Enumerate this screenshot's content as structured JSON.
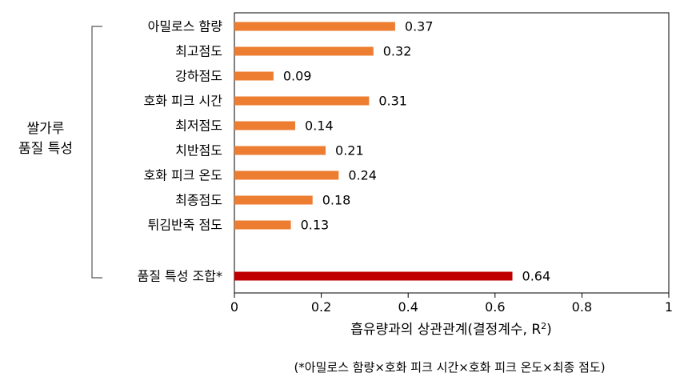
{
  "chart_data": {
    "type": "bar",
    "orientation": "horizontal",
    "categories": [
      "아밀로스 함량",
      "최고점도",
      "강하점도",
      "호화 피크 시간",
      "최저점도",
      "치반점도",
      "호화 피크 온도",
      "최종점도",
      "튀김반죽 점도",
      "품질 특성 조합*"
    ],
    "values": [
      0.37,
      0.32,
      0.09,
      0.31,
      0.14,
      0.21,
      0.24,
      0.18,
      0.13,
      0.64
    ],
    "value_labels": [
      "0.37",
      "0.32",
      "0.09",
      "0.31",
      "0.14",
      "0.21",
      "0.24",
      "0.18",
      "0.13",
      "0.64"
    ],
    "colors": [
      "#ED7D31",
      "#ED7D31",
      "#ED7D31",
      "#ED7D31",
      "#ED7D31",
      "#ED7D31",
      "#ED7D31",
      "#ED7D31",
      "#ED7D31",
      "#C00000"
    ],
    "xlim": [
      0,
      1
    ],
    "xticks": [
      "0",
      "0.2",
      "0.4",
      "0.6",
      "0.8",
      "1"
    ],
    "xlabel_pre": "흡유량과의 상관관계(결정계수, R",
    "xlabel_sup": "2",
    "xlabel_post": ")",
    "group_label_line1": "쌀가루",
    "group_label_line2": "품질 특성",
    "footnote": "(*아밀로스 함량×호화 피크 시간×호화 피크 온도×최종 점도)",
    "grid": false
  }
}
